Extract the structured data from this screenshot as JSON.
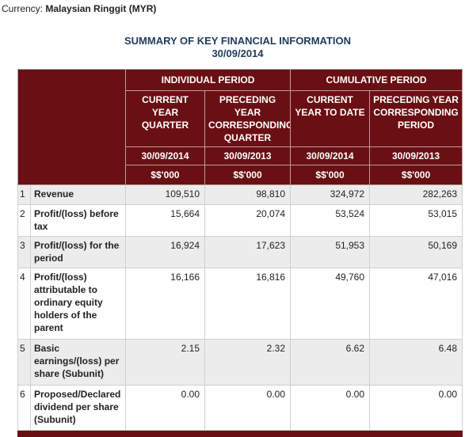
{
  "currency": {
    "label": "Currency:",
    "value": "Malaysian Ringgit (MYR)"
  },
  "header": {
    "title": "SUMMARY OF KEY FINANCIAL INFORMATION",
    "date": "30/09/2014"
  },
  "table": {
    "groups": [
      "INDIVIDUAL PERIOD",
      "CUMULATIVE PERIOD"
    ],
    "columns": [
      "CURRENT YEAR QUARTER",
      "PRECEDING YEAR CORRESPONDING QUARTER",
      "CURRENT YEAR TO DATE",
      "PRECEDING YEAR CORRESPONDING PERIOD"
    ],
    "dates": [
      "30/09/2014",
      "30/09/2013",
      "30/09/2014",
      "30/09/2013"
    ],
    "units": [
      "$$'000",
      "$$'000",
      "$$'000",
      "$$'000"
    ],
    "rows": [
      [
        "1",
        "Revenue",
        "109,510",
        "98,810",
        "324,972",
        "282,263"
      ],
      [
        "2",
        "Profit/(loss) before tax",
        "15,664",
        "20,074",
        "53,524",
        "53,015"
      ],
      [
        "3",
        "Profit/(loss) for the period",
        "16,924",
        "17,623",
        "51,953",
        "50,169"
      ],
      [
        "4",
        "Profit/(loss) attributable to ordinary equity holders of the parent",
        "16,166",
        "16,816",
        "49,760",
        "47,016"
      ],
      [
        "5",
        "Basic earnings/(loss) per share (Subunit)",
        "2.15",
        "2.32",
        "6.62",
        "6.48"
      ],
      [
        "6",
        "Proposed/Declared dividend per share (Subunit)",
        "0.00",
        "0.00",
        "0.00",
        "0.00"
      ]
    ]
  }
}
